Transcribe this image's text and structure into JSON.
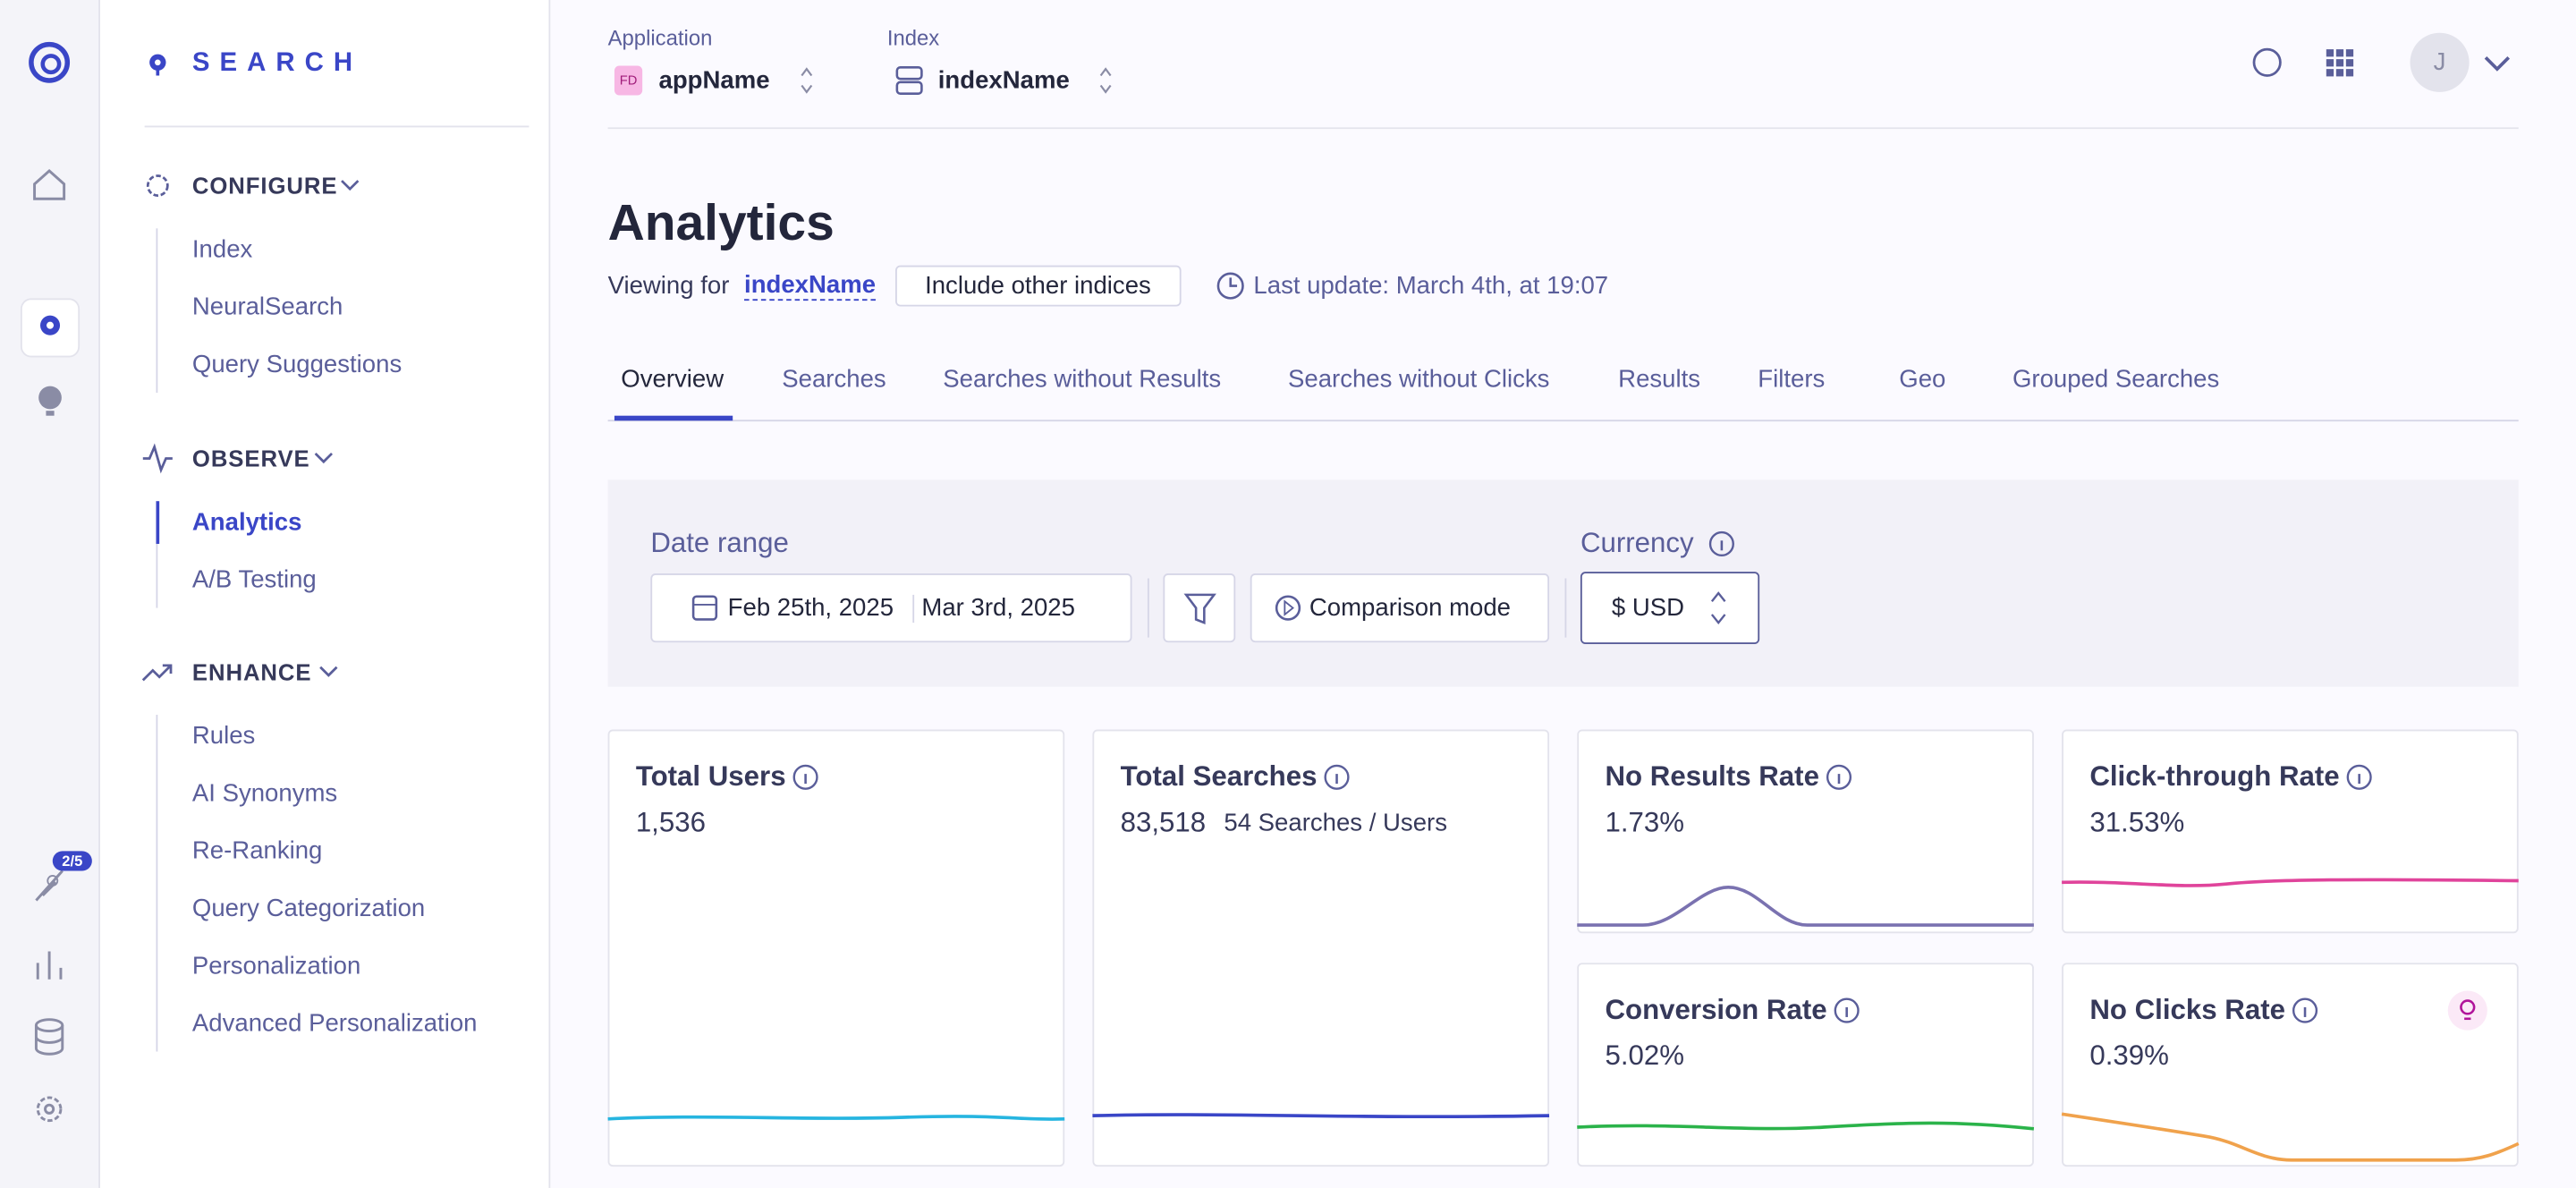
{
  "rail": {
    "badge": "2/5"
  },
  "sidebar": {
    "logo": "SEARCH",
    "sections": [
      {
        "title": "CONFIGURE",
        "items": [
          "Index",
          "NeuralSearch",
          "Query Suggestions"
        ]
      },
      {
        "title": "OBSERVE",
        "items": [
          "Analytics",
          "A/B Testing"
        ]
      },
      {
        "title": "ENHANCE",
        "items": [
          "Rules",
          "AI Synonyms",
          "Re-Ranking",
          "Query Categorization",
          "Personalization",
          "Advanced Personalization"
        ]
      }
    ]
  },
  "header": {
    "application_label": "Application",
    "app_icon": "FD",
    "app_name": "appName",
    "index_label": "Index",
    "index_name": "indexName",
    "avatar": "J"
  },
  "page": {
    "title": "Analytics",
    "viewing_for": "Viewing for",
    "index_link": "indexName",
    "include_button": "Include other indices",
    "last_update": "Last update: March 4th, at 19:07"
  },
  "tabs": [
    "Overview",
    "Searches",
    "Searches without Results",
    "Searches without Clicks",
    "Results",
    "Filters",
    "Geo",
    "Grouped Searches"
  ],
  "filters": {
    "date_range_label": "Date range",
    "date_start": "Feb 25th, 2025",
    "date_end": "Mar 3rd, 2025",
    "comparison": "Comparison mode",
    "currency_label": "Currency",
    "currency": "$ USD"
  },
  "cards": [
    {
      "title": "Total Users",
      "value": "1,536"
    },
    {
      "title": "Total Searches",
      "value": "83,518",
      "extra": "54 Searches / Users"
    },
    {
      "title": "No Results Rate",
      "value": "1.73%"
    },
    {
      "title": "Click-through Rate",
      "value": "31.53%"
    },
    {
      "title": "Conversion Rate",
      "value": "5.02%"
    },
    {
      "title": "No Clicks Rate",
      "value": "0.39%"
    }
  ]
}
